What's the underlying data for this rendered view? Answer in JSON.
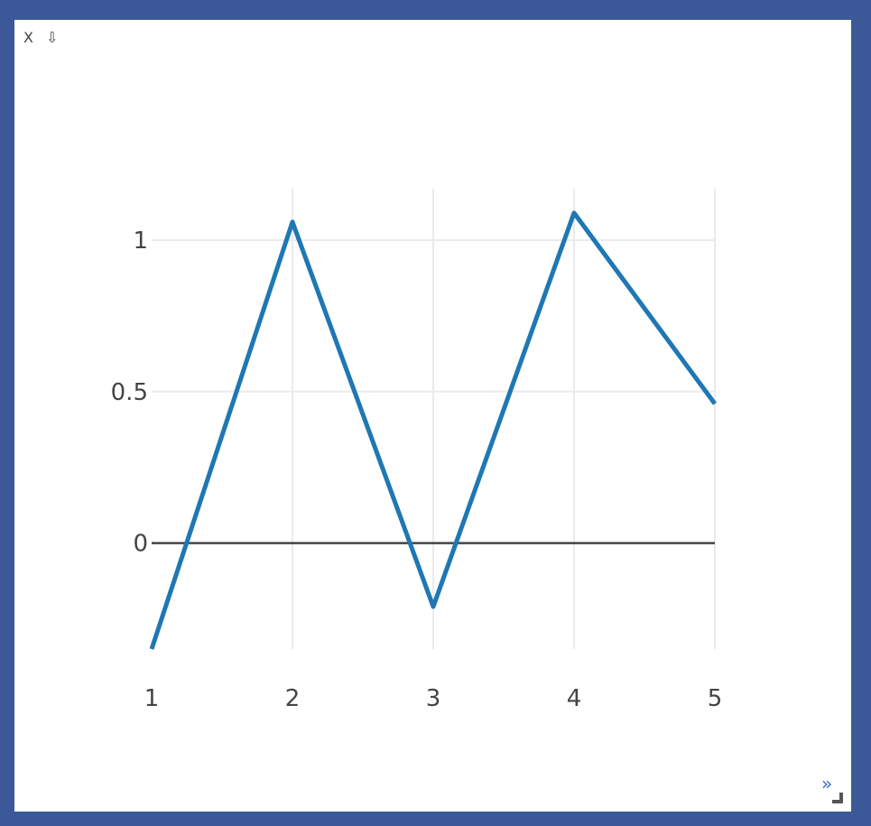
{
  "toolbar": {
    "close_label": "X",
    "download_label": "⇩"
  },
  "footer": {
    "expand_label": "»"
  },
  "chart_data": {
    "type": "line",
    "title": "",
    "xlabel": "",
    "ylabel": "",
    "x": [
      1,
      2,
      3,
      4,
      5
    ],
    "series": [
      {
        "values": [
          -0.35,
          1.06,
          -0.21,
          1.09,
          0.46
        ],
        "color": "#1f77b4"
      }
    ],
    "xlim": [
      1,
      5
    ],
    "ylim": [
      -0.35,
      1.17
    ],
    "x_ticks": [
      1,
      2,
      3,
      4,
      5
    ],
    "y_ticks": [
      0,
      0.5,
      1
    ],
    "grid": true,
    "zero_line": true
  }
}
